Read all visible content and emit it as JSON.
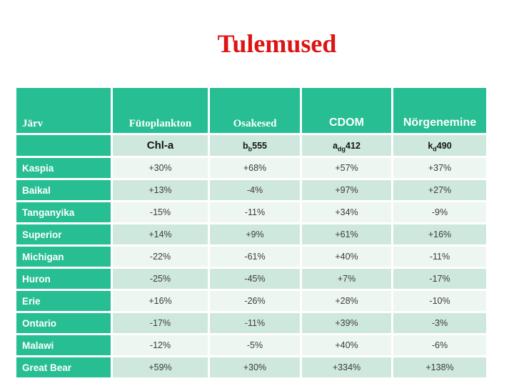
{
  "slide": {
    "title": "Tulemused",
    "colors": {
      "title_red": "#DE1414",
      "header_green": "#26BE92",
      "band_light": "#EDF6F1",
      "band_dark": "#CFE8DD",
      "header_text": "#FFFFFF",
      "cell_text": "#3C3C3C",
      "background": "#FFFFFF"
    }
  },
  "table": {
    "headers": [
      "Järv",
      "Fütoplankton",
      "Osakesed",
      "CDOM",
      "Nörgenemine"
    ],
    "subheaders": [
      {
        "text": "Chl-a"
      },
      {
        "base": "b",
        "sub": "b",
        "rest": "555"
      },
      {
        "base": "a",
        "sub": "dg",
        "rest": "412"
      },
      {
        "base": "k",
        "sub": "d",
        "rest": "490"
      }
    ],
    "rows": [
      {
        "lake": "Kaspia",
        "values": [
          "+30%",
          "+68%",
          "+57%",
          "+37%"
        ]
      },
      {
        "lake": "Baikal",
        "values": [
          "+13%",
          "-4%",
          "+97%",
          "+27%"
        ]
      },
      {
        "lake": "Tanganyika",
        "values": [
          "-15%",
          "-11%",
          "+34%",
          "-9%"
        ]
      },
      {
        "lake": "Superior",
        "values": [
          "+14%",
          "+9%",
          "+61%",
          "+16%"
        ]
      },
      {
        "lake": "Michigan",
        "values": [
          "-22%",
          "-61%",
          "+40%",
          "-11%"
        ]
      },
      {
        "lake": "Huron",
        "values": [
          "-25%",
          "-45%",
          "+7%",
          "-17%"
        ]
      },
      {
        "lake": "Erie",
        "values": [
          "+16%",
          "-26%",
          "+28%",
          "-10%"
        ]
      },
      {
        "lake": "Ontario",
        "values": [
          "-17%",
          "-11%",
          "+39%",
          "-3%"
        ]
      },
      {
        "lake": "Malawi",
        "values": [
          "-12%",
          "-5%",
          "+40%",
          "-6%"
        ]
      },
      {
        "lake": "Great Bear",
        "values": [
          "+59%",
          "+30%",
          "+334%",
          "+138%"
        ]
      }
    ]
  }
}
